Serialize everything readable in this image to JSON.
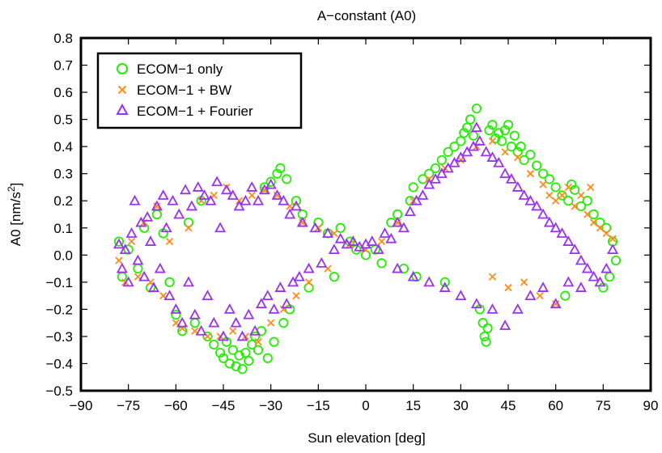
{
  "chart_data": {
    "type": "scatter",
    "title": "A−constant (A0)",
    "xlabel": "Sun elevation [deg]",
    "ylabel_main": "A0 [nm/s",
    "ylabel_sup": "2",
    "ylabel_close": "]",
    "xlim": [
      -90,
      90
    ],
    "ylim": [
      -0.5,
      0.8
    ],
    "xticks": [
      -90,
      -75,
      -60,
      -45,
      -30,
      -15,
      0,
      15,
      30,
      45,
      60,
      75,
      90
    ],
    "yticks": [
      -0.5,
      -0.4,
      -0.3,
      -0.2,
      -0.1,
      0.0,
      0.1,
      0.2,
      0.3,
      0.4,
      0.5,
      0.6,
      0.7,
      0.8
    ],
    "xtick_labels": [
      "−90",
      "−75",
      "−60",
      "−45",
      "−30",
      "−15",
      "0",
      "15",
      "30",
      "45",
      "60",
      "75",
      "90"
    ],
    "ytick_labels": [
      "−0.5",
      "−0.4",
      "−0.3",
      "−0.2",
      "−0.1",
      "0.0",
      "0.1",
      "0.2",
      "0.3",
      "0.4",
      "0.5",
      "0.6",
      "0.7",
      "0.8"
    ],
    "grid": false,
    "legend_position": "top-left",
    "series": [
      {
        "name": "ECOM−1 only",
        "marker": "circle",
        "color": "#22ee00",
        "points": [
          [
            -78,
            0.05
          ],
          [
            -77,
            -0.08
          ],
          [
            -75,
            0.02
          ],
          [
            -72,
            -0.05
          ],
          [
            -70,
            0.1
          ],
          [
            -68,
            -0.12
          ],
          [
            -66,
            0.15
          ],
          [
            -64,
            0.08
          ],
          [
            -62,
            -0.1
          ],
          [
            -60,
            -0.22
          ],
          [
            -58,
            -0.28
          ],
          [
            -56,
            0.12
          ],
          [
            -54,
            -0.25
          ],
          [
            -52,
            0.2
          ],
          [
            -50,
            -0.3
          ],
          [
            -48,
            -0.33
          ],
          [
            -46,
            -0.36
          ],
          [
            -45,
            -0.38
          ],
          [
            -44,
            -0.32
          ],
          [
            -43,
            -0.4
          ],
          [
            -42,
            -0.35
          ],
          [
            -41,
            -0.41
          ],
          [
            -40,
            -0.37
          ],
          [
            -39,
            -0.42
          ],
          [
            -38,
            -0.36
          ],
          [
            -37,
            -0.39
          ],
          [
            -36,
            -0.33
          ],
          [
            -35,
            -0.3
          ],
          [
            -34,
            -0.35
          ],
          [
            -33,
            -0.28
          ],
          [
            -32,
            0.25
          ],
          [
            -31,
            -0.38
          ],
          [
            -30,
            0.27
          ],
          [
            -29,
            -0.32
          ],
          [
            -28,
            0.3
          ],
          [
            -27,
            0.32
          ],
          [
            -26,
            -0.25
          ],
          [
            -25,
            0.28
          ],
          [
            -24,
            -0.2
          ],
          [
            -22,
            0.2
          ],
          [
            -20,
            0.15
          ],
          [
            -18,
            -0.12
          ],
          [
            -15,
            0.12
          ],
          [
            -12,
            0.08
          ],
          [
            -10,
            -0.08
          ],
          [
            -8,
            0.1
          ],
          [
            -5,
            0.05
          ],
          [
            -3,
            0.02
          ],
          [
            0,
            0.0
          ],
          [
            3,
            0.02
          ],
          [
            5,
            -0.03
          ],
          [
            8,
            0.12
          ],
          [
            10,
            0.15
          ],
          [
            12,
            -0.05
          ],
          [
            14,
            0.2
          ],
          [
            15,
            0.25
          ],
          [
            16,
            -0.08
          ],
          [
            18,
            0.28
          ],
          [
            20,
            0.3
          ],
          [
            22,
            0.32
          ],
          [
            24,
            0.35
          ],
          [
            25,
            -0.1
          ],
          [
            26,
            0.38
          ],
          [
            28,
            0.4
          ],
          [
            30,
            0.42
          ],
          [
            31,
            0.45
          ],
          [
            32,
            0.47
          ],
          [
            33,
            0.5
          ],
          [
            34,
            0.44
          ],
          [
            35,
            0.54
          ],
          [
            36,
            -0.2
          ],
          [
            37,
            -0.25
          ],
          [
            37.5,
            -0.3
          ],
          [
            38,
            -0.32
          ],
          [
            38.5,
            -0.27
          ],
          [
            39,
            0.46
          ],
          [
            40,
            0.48
          ],
          [
            41,
            0.43
          ],
          [
            42,
            0.45
          ],
          [
            43,
            0.42
          ],
          [
            44,
            0.46
          ],
          [
            45,
            0.48
          ],
          [
            46,
            0.4
          ],
          [
            47,
            0.44
          ],
          [
            48,
            0.38
          ],
          [
            49,
            0.4
          ],
          [
            50,
            0.35
          ],
          [
            52,
            0.37
          ],
          [
            54,
            0.33
          ],
          [
            56,
            0.3
          ],
          [
            58,
            0.28
          ],
          [
            60,
            0.25
          ],
          [
            62,
            0.22
          ],
          [
            63,
            -0.15
          ],
          [
            64,
            0.2
          ],
          [
            65,
            0.26
          ],
          [
            66,
            0.24
          ],
          [
            68,
            0.18
          ],
          [
            70,
            0.2
          ],
          [
            72,
            0.15
          ],
          [
            74,
            0.12
          ],
          [
            75,
            -0.12
          ],
          [
            76,
            0.1
          ],
          [
            77,
            -0.08
          ],
          [
            78,
            0.05
          ],
          [
            79,
            -0.02
          ]
        ]
      },
      {
        "name": "ECOM−1 + BW",
        "marker": "cross",
        "color": "#ff8c1a",
        "points": [
          [
            -78,
            -0.02
          ],
          [
            -76,
            -0.1
          ],
          [
            -74,
            0.05
          ],
          [
            -72,
            -0.08
          ],
          [
            -70,
            0.12
          ],
          [
            -68,
            -0.1
          ],
          [
            -66,
            0.18
          ],
          [
            -64,
            -0.15
          ],
          [
            -62,
            0.05
          ],
          [
            -60,
            -0.25
          ],
          [
            -58,
            -0.27
          ],
          [
            -56,
            0.1
          ],
          [
            -54,
            -0.28
          ],
          [
            -52,
            0.2
          ],
          [
            -50,
            -0.3
          ],
          [
            -48,
            0.22
          ],
          [
            -46,
            -0.3
          ],
          [
            -44,
            0.25
          ],
          [
            -42,
            -0.28
          ],
          [
            -40,
            0.2
          ],
          [
            -38,
            -0.3
          ],
          [
            -36,
            0.22
          ],
          [
            -34,
            -0.32
          ],
          [
            -32,
            0.24
          ],
          [
            -30,
            -0.25
          ],
          [
            -28,
            0.22
          ],
          [
            -26,
            -0.2
          ],
          [
            -24,
            0.18
          ],
          [
            -22,
            -0.15
          ],
          [
            -20,
            0.12
          ],
          [
            -18,
            -0.1
          ],
          [
            -15,
            0.1
          ],
          [
            -12,
            -0.05
          ],
          [
            -10,
            0.08
          ],
          [
            -5,
            0.04
          ],
          [
            0,
            0.02
          ],
          [
            5,
            0.05
          ],
          [
            10,
            0.12
          ],
          [
            15,
            0.2
          ],
          [
            20,
            0.28
          ],
          [
            25,
            0.32
          ],
          [
            30,
            0.35
          ],
          [
            35,
            0.4
          ],
          [
            40,
            0.42
          ],
          [
            44,
            0.38
          ],
          [
            48,
            0.36
          ],
          [
            52,
            0.3
          ],
          [
            56,
            0.26
          ],
          [
            58,
            0.22
          ],
          [
            60,
            0.2
          ],
          [
            62,
            0.22
          ],
          [
            64,
            0.25
          ],
          [
            66,
            0.18
          ],
          [
            68,
            0.22
          ],
          [
            70,
            0.15
          ],
          [
            71,
            0.25
          ],
          [
            72,
            0.12
          ],
          [
            74,
            0.1
          ],
          [
            76,
            0.08
          ],
          [
            78,
            0.06
          ],
          [
            60,
            -0.18
          ],
          [
            55,
            -0.15
          ],
          [
            50,
            -0.1
          ],
          [
            45,
            -0.12
          ],
          [
            40,
            -0.08
          ]
        ]
      },
      {
        "name": "ECOM−1 + Fourier",
        "marker": "triangle",
        "color": "#9933ee",
        "points": [
          [
            -78,
            0.04
          ],
          [
            -77,
            -0.05
          ],
          [
            -76,
            0.02
          ],
          [
            -75,
            -0.1
          ],
          [
            -74,
            0.08
          ],
          [
            -73,
            0.2
          ],
          [
            -72,
            -0.02
          ],
          [
            -71,
            0.12
          ],
          [
            -70,
            -0.08
          ],
          [
            -69,
            0.14
          ],
          [
            -68,
            0.05
          ],
          [
            -67,
            -0.12
          ],
          [
            -66,
            0.18
          ],
          [
            -65,
            -0.05
          ],
          [
            -64,
            0.22
          ],
          [
            -63,
            0.1
          ],
          [
            -62,
            -0.15
          ],
          [
            -61,
            0.2
          ],
          [
            -60,
            -0.2
          ],
          [
            -59,
            0.15
          ],
          [
            -58,
            -0.25
          ],
          [
            -57,
            0.24
          ],
          [
            -56,
            -0.1
          ],
          [
            -55,
            0.18
          ],
          [
            -54,
            -0.22
          ],
          [
            -53,
            0.25
          ],
          [
            -52,
            -0.28
          ],
          [
            -51,
            0.22
          ],
          [
            -50,
            -0.15
          ],
          [
            -49,
            0.2
          ],
          [
            -48,
            -0.25
          ],
          [
            -47,
            0.27
          ],
          [
            -46,
            0.1
          ],
          [
            -45,
            -0.3
          ],
          [
            -44,
            0.24
          ],
          [
            -43,
            -0.2
          ],
          [
            -42,
            0.22
          ],
          [
            -41,
            -0.25
          ],
          [
            -40,
            0.18
          ],
          [
            -39,
            -0.3
          ],
          [
            -38,
            0.2
          ],
          [
            -37,
            -0.22
          ],
          [
            -36,
            0.25
          ],
          [
            -35,
            -0.28
          ],
          [
            -34,
            0.2
          ],
          [
            -33,
            -0.18
          ],
          [
            -32,
            0.24
          ],
          [
            -31,
            -0.15
          ],
          [
            -30,
            0.26
          ],
          [
            -29,
            -0.2
          ],
          [
            -28,
            0.22
          ],
          [
            -27,
            -0.12
          ],
          [
            -26,
            0.2
          ],
          [
            -25,
            -0.18
          ],
          [
            -24,
            0.15
          ],
          [
            -23,
            -0.1
          ],
          [
            -22,
            0.18
          ],
          [
            -21,
            -0.08
          ],
          [
            -20,
            0.12
          ],
          [
            -18,
            -0.05
          ],
          [
            -16,
            0.1
          ],
          [
            -14,
            -0.03
          ],
          [
            -12,
            0.08
          ],
          [
            -10,
            0.02
          ],
          [
            -8,
            0.06
          ],
          [
            -6,
            0.04
          ],
          [
            -4,
            0.05
          ],
          [
            -2,
            0.03
          ],
          [
            0,
            0.04
          ],
          [
            2,
            0.05
          ],
          [
            4,
            0.02
          ],
          [
            6,
            0.08
          ],
          [
            8,
            0.06
          ],
          [
            10,
            0.12
          ],
          [
            12,
            0.1
          ],
          [
            14,
            0.16
          ],
          [
            16,
            0.2
          ],
          [
            18,
            0.22
          ],
          [
            20,
            0.26
          ],
          [
            22,
            0.28
          ],
          [
            24,
            0.3
          ],
          [
            26,
            0.32
          ],
          [
            28,
            0.34
          ],
          [
            30,
            0.36
          ],
          [
            32,
            0.38
          ],
          [
            34,
            0.4
          ],
          [
            35,
            0.47
          ],
          [
            36,
            0.42
          ],
          [
            38,
            0.38
          ],
          [
            40,
            0.36
          ],
          [
            42,
            0.34
          ],
          [
            44,
            0.3
          ],
          [
            46,
            0.28
          ],
          [
            48,
            0.25
          ],
          [
            50,
            0.22
          ],
          [
            52,
            0.2
          ],
          [
            54,
            0.18
          ],
          [
            56,
            0.15
          ],
          [
            58,
            0.12
          ],
          [
            60,
            0.1
          ],
          [
            62,
            0.08
          ],
          [
            64,
            0.05
          ],
          [
            66,
            0.02
          ],
          [
            68,
            -0.02
          ],
          [
            70,
            -0.05
          ],
          [
            72,
            -0.08
          ],
          [
            74,
            -0.1
          ],
          [
            76,
            -0.05
          ],
          [
            78,
            0.02
          ],
          [
            10,
            -0.05
          ],
          [
            15,
            -0.08
          ],
          [
            20,
            -0.1
          ],
          [
            25,
            -0.12
          ],
          [
            30,
            -0.15
          ],
          [
            35,
            -0.18
          ],
          [
            40,
            -0.2
          ],
          [
            44,
            -0.26
          ],
          [
            48,
            -0.2
          ],
          [
            52,
            -0.15
          ],
          [
            56,
            -0.12
          ],
          [
            60,
            -0.18
          ],
          [
            64,
            -0.1
          ],
          [
            68,
            -0.12
          ]
        ]
      }
    ]
  }
}
